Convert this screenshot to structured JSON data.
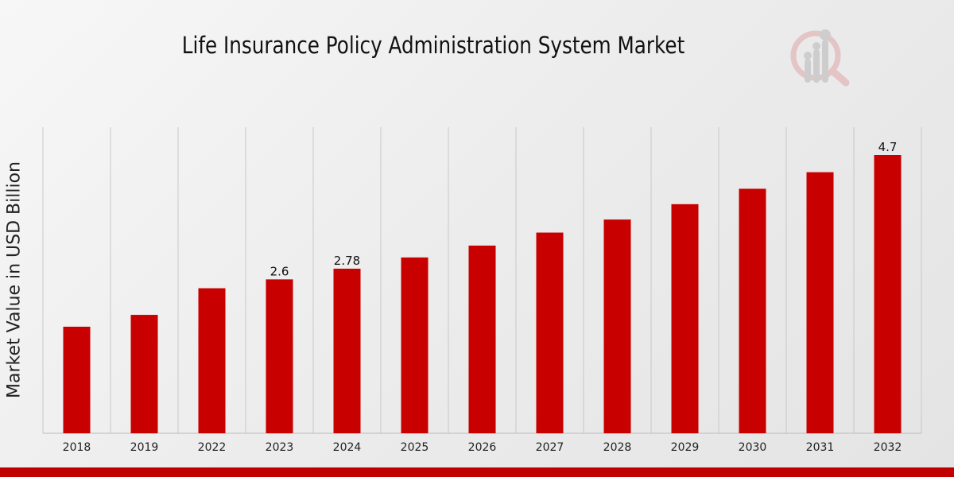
{
  "chart_data": {
    "type": "bar",
    "title": "Life Insurance Policy Administration System Market",
    "xlabel": "",
    "ylabel": "Market Value in USD Billion",
    "categories": [
      "2018",
      "2019",
      "2022",
      "2023",
      "2024",
      "2025",
      "2026",
      "2027",
      "2028",
      "2029",
      "2030",
      "2031",
      "2032"
    ],
    "values": [
      1.8,
      2.0,
      2.45,
      2.6,
      2.78,
      2.97,
      3.17,
      3.39,
      3.61,
      3.87,
      4.13,
      4.41,
      4.7
    ],
    "data_labels": {
      "2023": "2.6",
      "2024": "2.78",
      "2032": "4.7"
    },
    "ylim": [
      0,
      5.17
    ],
    "grid": "vertical",
    "bar_color": "#c80000"
  }
}
